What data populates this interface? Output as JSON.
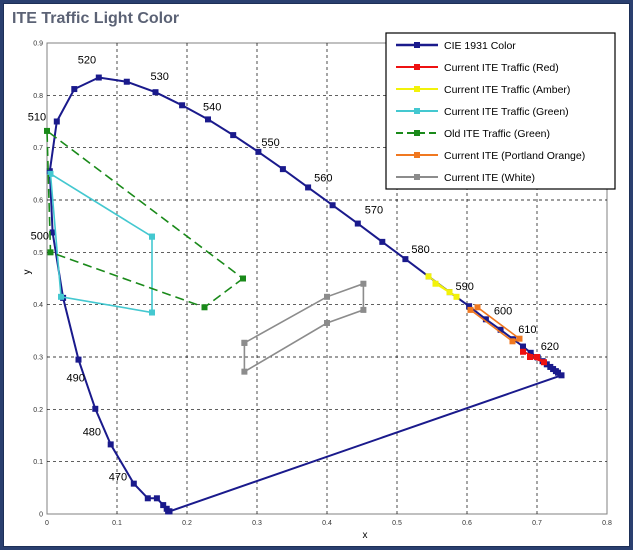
{
  "chart_data": {
    "type": "scatter",
    "title": "ITE Traffic Light Color",
    "xlabel": "x",
    "ylabel": "y",
    "xlim": [
      0,
      0.8
    ],
    "ylim": [
      0,
      0.9
    ],
    "x_ticks": [
      "0",
      "0.1",
      "0.2",
      "0.3",
      "0.4",
      "0.5",
      "0.6",
      "0.7",
      "0.8"
    ],
    "y_ticks": [
      "0",
      "0.1",
      "0.2",
      "0.3",
      "0.4",
      "0.5",
      "0.6",
      "0.7",
      "0.8",
      "0.9"
    ],
    "grid": true,
    "legend_position": "top-right",
    "wavelength_labels": [
      {
        "text": "470",
        "x": 0.124,
        "y": 0.058,
        "dx": -25,
        "dy": -3
      },
      {
        "text": "480",
        "x": 0.091,
        "y": 0.133,
        "dx": -28,
        "dy": -9
      },
      {
        "text": "490",
        "x": 0.045,
        "y": 0.295,
        "dx": -12,
        "dy": 22
      },
      {
        "text": "500",
        "x": 0.008,
        "y": 0.538,
        "dx": -22,
        "dy": 7
      },
      {
        "text": "510",
        "x": 0.014,
        "y": 0.75,
        "dx": -29,
        "dy": -1
      },
      {
        "text": "520",
        "x": 0.074,
        "y": 0.834,
        "dx": -21,
        "dy": -14
      },
      {
        "text": "530",
        "x": 0.155,
        "y": 0.806,
        "dx": -5,
        "dy": -12
      },
      {
        "text": "540",
        "x": 0.23,
        "y": 0.754,
        "dx": -5,
        "dy": -9
      },
      {
        "text": "550",
        "x": 0.302,
        "y": 0.692,
        "dx": 3,
        "dy": -6
      },
      {
        "text": "560",
        "x": 0.373,
        "y": 0.624,
        "dx": 6,
        "dy": -6
      },
      {
        "text": "570",
        "x": 0.444,
        "y": 0.555,
        "dx": 7,
        "dy": -10
      },
      {
        "text": "580",
        "x": 0.512,
        "y": 0.487,
        "dx": 6,
        "dy": -6
      },
      {
        "text": "590",
        "x": 0.575,
        "y": 0.424,
        "dx": 6,
        "dy": -2
      },
      {
        "text": "600",
        "x": 0.627,
        "y": 0.372,
        "dx": 8,
        "dy": -5
      },
      {
        "text": "610",
        "x": 0.666,
        "y": 0.334,
        "dx": 5,
        "dy": -6
      },
      {
        "text": "620",
        "x": 0.691,
        "y": 0.308,
        "dx": 10,
        "dy": -3
      }
    ],
    "series": [
      {
        "name": "CIE 1931 Color",
        "color": "#1a1a8c",
        "style": "solid",
        "marker": "square",
        "x": [
          0.175,
          0.173,
          0.171,
          0.166,
          0.157,
          0.144,
          0.124,
          0.091,
          0.069,
          0.045,
          0.023,
          0.008,
          0.004,
          0.014,
          0.039,
          0.074,
          0.114,
          0.155,
          0.193,
          0.23,
          0.266,
          0.302,
          0.337,
          0.373,
          0.408,
          0.444,
          0.479,
          0.512,
          0.545,
          0.575,
          0.603,
          0.627,
          0.648,
          0.666,
          0.68,
          0.691,
          0.701,
          0.708,
          0.714,
          0.719,
          0.723,
          0.727,
          0.73,
          0.735,
          0.175
        ],
        "y": [
          0.005,
          0.005,
          0.01,
          0.017,
          0.03,
          0.03,
          0.058,
          0.133,
          0.201,
          0.295,
          0.413,
          0.538,
          0.655,
          0.75,
          0.812,
          0.834,
          0.826,
          0.806,
          0.781,
          0.754,
          0.724,
          0.692,
          0.659,
          0.624,
          0.59,
          0.555,
          0.52,
          0.487,
          0.454,
          0.424,
          0.397,
          0.372,
          0.352,
          0.334,
          0.32,
          0.308,
          0.299,
          0.292,
          0.286,
          0.281,
          0.277,
          0.273,
          0.27,
          0.265,
          0.005
        ]
      },
      {
        "name": "Current ITE Traffic (Red)",
        "color": "#ee1111",
        "style": "solid",
        "marker": "square",
        "x": [
          0.68,
          0.7,
          0.71,
          0.69
        ],
        "y": [
          0.31,
          0.3,
          0.29,
          0.3
        ]
      },
      {
        "name": "Current ITE Traffic (Amber)",
        "color": "#f2f20a",
        "style": "solid",
        "marker": "square",
        "x": [
          0.545,
          0.575,
          0.585,
          0.555
        ],
        "y": [
          0.454,
          0.424,
          0.415,
          0.44
        ]
      },
      {
        "name": "Current ITE Traffic (Green)",
        "color": "#44c8d0",
        "style": "solid",
        "marker": "square",
        "x": [
          0.15,
          0.15,
          0.02,
          0.005,
          0.15
        ],
        "y": [
          0.53,
          0.385,
          0.415,
          0.65,
          0.53
        ]
      },
      {
        "name": "Old ITE Traffic (Green)",
        "color": "#1a8a1a",
        "style": "dashed",
        "marker": "square",
        "x": [
          0.28,
          0.225,
          0.005,
          0.0,
          0.28
        ],
        "y": [
          0.45,
          0.395,
          0.5,
          0.732,
          0.45
        ]
      },
      {
        "name": "Current ITE (Portland Orange)",
        "color": "#f07820",
        "style": "solid",
        "marker": "square",
        "x": [
          0.605,
          0.665,
          0.675,
          0.615
        ],
        "y": [
          0.39,
          0.33,
          0.335,
          0.395
        ]
      },
      {
        "name": "Current ITE (White)",
        "color": "#8c8c8c",
        "style": "solid",
        "marker": "square",
        "x": [
          0.282,
          0.282,
          0.4,
          0.452,
          0.452,
          0.4,
          0.282
        ],
        "y": [
          0.327,
          0.272,
          0.365,
          0.39,
          0.44,
          0.415,
          0.327
        ]
      }
    ]
  }
}
